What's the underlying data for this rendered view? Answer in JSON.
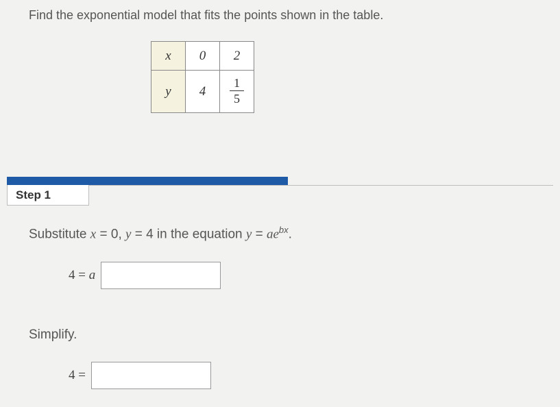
{
  "prompt": "Find the exponential model that fits the points shown in the table.",
  "table": {
    "row_header_bg": "#f5f3e0",
    "border_color": "#888888",
    "row0": {
      "header": "x",
      "cells": [
        "0",
        "2"
      ]
    },
    "row1": {
      "header": "y",
      "cells": [
        "4",
        {
          "num": "1",
          "den": "5"
        }
      ]
    }
  },
  "step": {
    "bar_color": "#1f5aa6",
    "label": "Step 1"
  },
  "substitute": {
    "prefix": "Substitute ",
    "x_var": "x",
    "x_val": " = 0, ",
    "y_var": "y",
    "y_val": " = 4 in the equation ",
    "eq_lhs": "y",
    "eq_eqs": " = ",
    "eq_a": "a",
    "eq_e": "e",
    "eq_exp": "bx",
    "period": "."
  },
  "eq1": {
    "lhs_num": "4",
    "lhs_eq": " = ",
    "lhs_var": "a"
  },
  "simplify_label": "Simplify.",
  "eq2": {
    "lhs_num": "4",
    "lhs_eq": " = "
  },
  "colors": {
    "page_bg": "#f2f2f0",
    "text": "#555555",
    "box_border": "#999999",
    "box_bg": "#ffffff"
  }
}
